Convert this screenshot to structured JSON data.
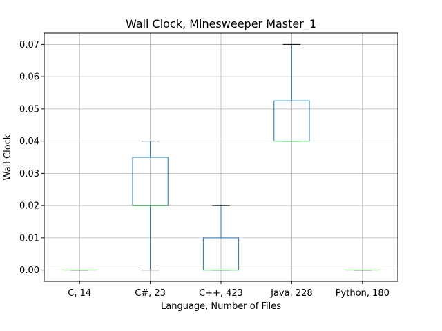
{
  "chart_data": {
    "type": "box",
    "title": "Wall Clock, Minesweeper Master_1",
    "xlabel": "Language, Number of Files",
    "ylabel": "Wall Clock",
    "ylim": [
      -0.0035,
      0.0735
    ],
    "yticks": [
      0.0,
      0.01,
      0.02,
      0.03,
      0.04,
      0.05,
      0.06,
      0.07
    ],
    "ytick_labels": [
      "0.00",
      "0.01",
      "0.02",
      "0.03",
      "0.04",
      "0.05",
      "0.06",
      "0.07"
    ],
    "grid": true,
    "categories": [
      "C, 14",
      "C#, 23",
      "C++, 423",
      "Java, 228",
      "Python, 180"
    ],
    "boxes": [
      {
        "category": "C, 14",
        "whisker_low": 0.0,
        "q1": 0.0,
        "median": 0.0,
        "q3": 0.0,
        "whisker_high": 0.0
      },
      {
        "category": "C#, 23",
        "whisker_low": 0.0,
        "q1": 0.02,
        "median": 0.02,
        "q3": 0.035,
        "whisker_high": 0.04
      },
      {
        "category": "C++, 423",
        "whisker_low": 0.0,
        "q1": 0.0,
        "median": 0.0,
        "q3": 0.01,
        "whisker_high": 0.02
      },
      {
        "category": "Java, 228",
        "whisker_low": 0.04,
        "q1": 0.04,
        "median": 0.04,
        "q3": 0.0525,
        "whisker_high": 0.07
      },
      {
        "category": "Python, 180",
        "whisker_low": 0.0,
        "q1": 0.0,
        "median": 0.0,
        "q3": 0.0,
        "whisker_high": 0.0
      }
    ],
    "colors": {
      "box": "#1f77b4",
      "median": "#2ca02c",
      "whisker_cap": "#000000",
      "grid": "#b0b0b0",
      "axes": "#000000"
    }
  }
}
